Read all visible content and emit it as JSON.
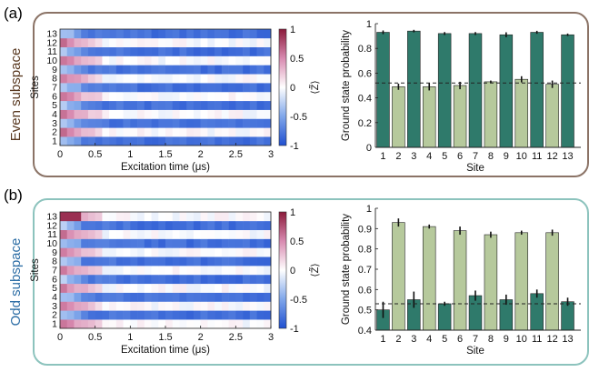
{
  "panels": [
    {
      "label": "(a)",
      "subspace_label": "Even subspace",
      "frame_color": "#8b7366",
      "label_color": "#5a3a22",
      "heatmap": {
        "type": "heatmap",
        "ylabel": "Sites",
        "xlabel": "Excitation time (μs)",
        "x_ticks": [
          "0",
          "0.5",
          "1",
          "1.5",
          "2",
          "2.5",
          "3"
        ],
        "x_range": [
          0,
          3
        ],
        "y_ticks": [
          "1",
          "2",
          "3",
          "4",
          "5",
          "6",
          "7",
          "8",
          "9",
          "10",
          "11",
          "12",
          "13"
        ],
        "n_time_bins": 30,
        "white_sites": [
          2,
          4,
          6,
          8,
          10,
          12
        ],
        "colorbar_label": "⟨Z̃⟩",
        "colorbar_ticks": [
          "1",
          "0.5",
          "0",
          "-0.5",
          "-1"
        ],
        "colorbar_range": [
          -1,
          1
        ]
      },
      "bar": {
        "type": "bar",
        "ylabel": "Ground state probability",
        "xlabel": "Site",
        "categories": [
          "1",
          "2",
          "3",
          "4",
          "5",
          "6",
          "7",
          "8",
          "9",
          "10",
          "11",
          "12",
          "13"
        ],
        "values": [
          0.93,
          0.49,
          0.94,
          0.49,
          0.92,
          0.5,
          0.92,
          0.53,
          0.91,
          0.55,
          0.93,
          0.51,
          0.91
        ],
        "errors": [
          0.015,
          0.025,
          0.01,
          0.03,
          0.012,
          0.03,
          0.012,
          0.01,
          0.02,
          0.025,
          0.012,
          0.03,
          0.01
        ],
        "dashed_line": 0.52,
        "y_ticks": [
          "0",
          "0.2",
          "0.4",
          "0.6",
          "0.8",
          "1"
        ],
        "ylim": [
          0,
          1
        ]
      }
    },
    {
      "label": "(b)",
      "subspace_label": "Odd subspace",
      "frame_color": "#8cc3bd",
      "label_color": "#2f6fa6",
      "heatmap": {
        "type": "heatmap",
        "ylabel": "Sites",
        "xlabel": "Excitation time (μs)",
        "x_ticks": [
          "0",
          "0.5",
          "1",
          "1.5",
          "2",
          "2.5",
          "3"
        ],
        "x_range": [
          0,
          3
        ],
        "y_ticks": [
          "1",
          "2",
          "3",
          "4",
          "5",
          "6",
          "7",
          "8",
          "9",
          "10",
          "11",
          "12",
          "13"
        ],
        "n_time_bins": 30,
        "white_sites": [
          1,
          3,
          5,
          7,
          9,
          11,
          13
        ],
        "colorbar_label": "⟨Z̃⟩",
        "colorbar_ticks": [
          "1",
          "0.5",
          "0",
          "-0.5",
          "-1"
        ],
        "colorbar_range": [
          -1,
          1
        ]
      },
      "bar": {
        "type": "bar",
        "ylabel": "Ground state probability",
        "xlabel": "Site",
        "categories": [
          "1",
          "2",
          "3",
          "4",
          "5",
          "6",
          "7",
          "8",
          "9",
          "10",
          "11",
          "12",
          "13"
        ],
        "values": [
          0.5,
          0.93,
          0.55,
          0.91,
          0.53,
          0.89,
          0.57,
          0.87,
          0.55,
          0.88,
          0.58,
          0.88,
          0.54
        ],
        "errors": [
          0.04,
          0.02,
          0.04,
          0.01,
          0.01,
          0.02,
          0.025,
          0.015,
          0.025,
          0.01,
          0.02,
          0.015,
          0.02
        ],
        "dashed_line": 0.53,
        "y_ticks": [
          "0.4",
          "0.5",
          "0.6",
          "0.7",
          "0.8",
          "0.9",
          "1"
        ],
        "ylim": [
          0.4,
          1
        ]
      }
    }
  ],
  "colors": {
    "dark_bar": "#2f7a6b",
    "light_bar": "#b6c99c",
    "cmap_low": "#1f5bd9",
    "cmap_mid": "#ffffff",
    "cmap_high": "#8b1a3a"
  }
}
